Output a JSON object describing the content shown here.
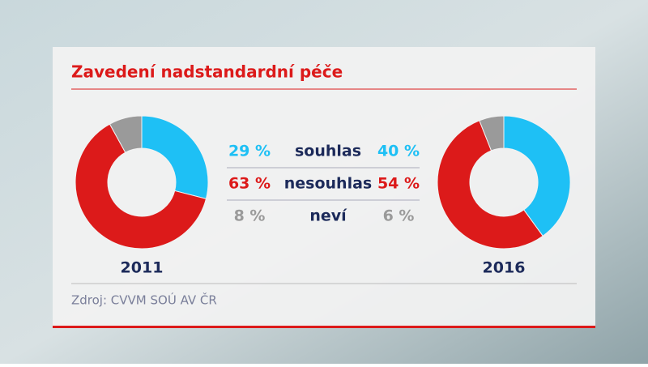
{
  "chart_data": {
    "type": "pie",
    "title": "Zavedení nadstandardní péče",
    "categories": [
      "souhlas",
      "nesouhlas",
      "neví"
    ],
    "colors": [
      "#1ec0f5",
      "#dc1a1a",
      "#9a9a9a"
    ],
    "hole": true,
    "series": [
      {
        "name": "2011",
        "values": [
          29,
          63,
          8
        ],
        "value_labels": [
          "29 %",
          "63 %",
          "8 %"
        ]
      },
      {
        "name": "2016",
        "values": [
          40,
          54,
          6
        ],
        "value_labels": [
          "40 %",
          "54 %",
          "6 %"
        ]
      }
    ],
    "source": "Zdroj: CVVM SOÚ AV ČR"
  }
}
